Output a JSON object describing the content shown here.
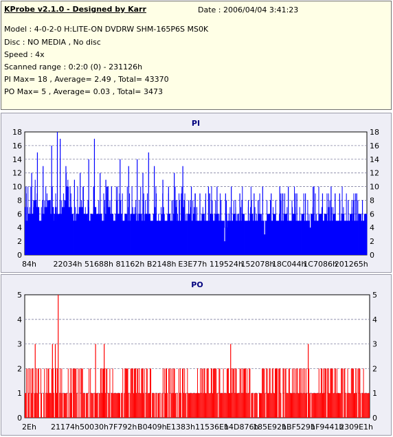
{
  "info": {
    "title": "KProbe v2.1.0 - Designed by Karr",
    "date": "Date : 2006/04/04 3:41:23",
    "model": "Model : 4-0-2-0 H:LITE-ON DVDRW SHM-165P6S MS0K",
    "disc": "Disc : NO MEDIA , No disc",
    "speed": "Speed : 4x",
    "range": "Scanned range : 0:2:0 (0) - 231126h",
    "pi_stats": "PI Max= 18 , Average= 2.49 , Total= 43370",
    "po_stats": "PO Max= 5 , Average= 0.03 , Total= 3473"
  },
  "colors": {
    "pi_bar": "#0000ff",
    "po_bar": "#ff0000",
    "plot_bg": "#ffffff",
    "panel_bg": "#eeeef6",
    "info_bg": "#ffffe6"
  },
  "chart_data": [
    {
      "type": "bar",
      "title": "PI",
      "ylim": [
        0,
        18
      ],
      "yticks": [
        0,
        2,
        4,
        6,
        8,
        10,
        12,
        14,
        16,
        18
      ],
      "xticklabels": [
        "84h",
        "22034h",
        "51688h",
        "81162h",
        "B2148h",
        "E3E77h",
        "119524h",
        "152078h",
        "18C044h",
        "1C7086h",
        "201265h"
      ],
      "grid": true,
      "baseline": [
        5,
        6,
        6,
        8,
        7,
        5,
        6,
        7,
        8,
        6,
        5,
        6,
        6,
        7,
        8,
        7,
        6,
        5,
        6,
        7,
        6,
        6,
        5,
        6,
        7,
        6,
        6,
        5,
        6,
        7,
        6,
        5,
        6,
        6,
        5,
        6,
        5,
        6,
        6,
        5,
        6,
        5,
        6,
        6,
        5,
        6,
        5,
        5,
        6,
        5,
        6,
        5,
        6,
        5,
        5,
        6,
        5,
        6,
        5,
        6,
        5,
        5,
        6,
        5,
        5,
        6,
        5,
        6,
        5,
        5,
        4,
        5,
        5,
        6,
        5,
        5,
        6,
        5,
        5,
        6,
        5,
        5,
        6,
        5,
        5,
        6,
        5,
        6,
        5,
        5,
        5,
        6,
        5,
        5,
        6,
        5,
        5,
        6,
        5,
        5,
        6,
        5,
        5,
        6,
        5,
        6,
        5,
        5,
        6,
        5,
        5,
        6,
        5,
        5,
        6,
        5,
        5,
        6,
        5,
        6
      ],
      "spikes": [
        [
          0,
          10
        ],
        [
          2,
          12
        ],
        [
          4,
          15
        ],
        [
          6,
          13
        ],
        [
          9,
          16
        ],
        [
          11,
          18
        ],
        [
          12,
          17
        ],
        [
          14,
          13
        ],
        [
          17,
          11
        ],
        [
          19,
          12
        ],
        [
          20,
          10
        ],
        [
          22,
          14
        ],
        [
          24,
          17
        ],
        [
          26,
          12
        ],
        [
          28,
          11
        ],
        [
          30,
          10
        ],
        [
          33,
          14
        ],
        [
          36,
          13
        ],
        [
          39,
          14
        ],
        [
          41,
          12
        ],
        [
          43,
          15
        ],
        [
          45,
          13
        ],
        [
          48,
          11
        ],
        [
          50,
          10
        ],
        [
          52,
          12
        ],
        [
          55,
          13
        ],
        [
          58,
          10
        ],
        [
          61,
          9
        ],
        [
          64,
          10
        ],
        [
          67,
          10
        ],
        [
          70,
          9
        ],
        [
          72,
          10
        ],
        [
          75,
          9
        ],
        [
          78,
          8
        ],
        [
          80,
          9
        ],
        [
          83,
          10
        ],
        [
          86,
          9
        ],
        [
          89,
          10
        ],
        [
          92,
          10
        ],
        [
          95,
          9
        ],
        [
          98,
          9
        ],
        [
          101,
          10
        ],
        [
          104,
          9
        ],
        [
          107,
          10
        ],
        [
          110,
          9
        ],
        [
          113,
          8
        ],
        [
          116,
          9
        ],
        [
          118,
          8
        ]
      ],
      "dips": [
        [
          70,
          2
        ],
        [
          84,
          3
        ],
        [
          100,
          4
        ]
      ]
    },
    {
      "type": "bar",
      "title": "PO",
      "ylim": [
        0,
        5
      ],
      "yticks": [
        0,
        1,
        2,
        3,
        4,
        5
      ],
      "xticklabels": [
        "2Eh",
        "21174h",
        "50030h",
        "7F792h",
        "B0409h",
        "E1383h",
        "11536Eh",
        "14D876h",
        "185E92h",
        "1BF529h",
        "1F9441h",
        "2309E1h"
      ],
      "grid": true,
      "twos_ranges": [
        [
          0,
          12
        ],
        [
          14,
          22
        ],
        [
          26,
          30
        ],
        [
          34,
          44
        ],
        [
          48,
          56
        ],
        [
          60,
          78
        ],
        [
          82,
          98
        ],
        [
          102,
          118
        ]
      ],
      "spikes": [
        [
          3,
          3
        ],
        [
          9,
          3
        ],
        [
          10,
          3
        ],
        [
          11,
          5
        ],
        [
          24,
          3
        ],
        [
          27,
          3
        ],
        [
          71,
          3
        ],
        [
          98,
          3
        ],
        [
          105,
          2
        ]
      ]
    }
  ]
}
